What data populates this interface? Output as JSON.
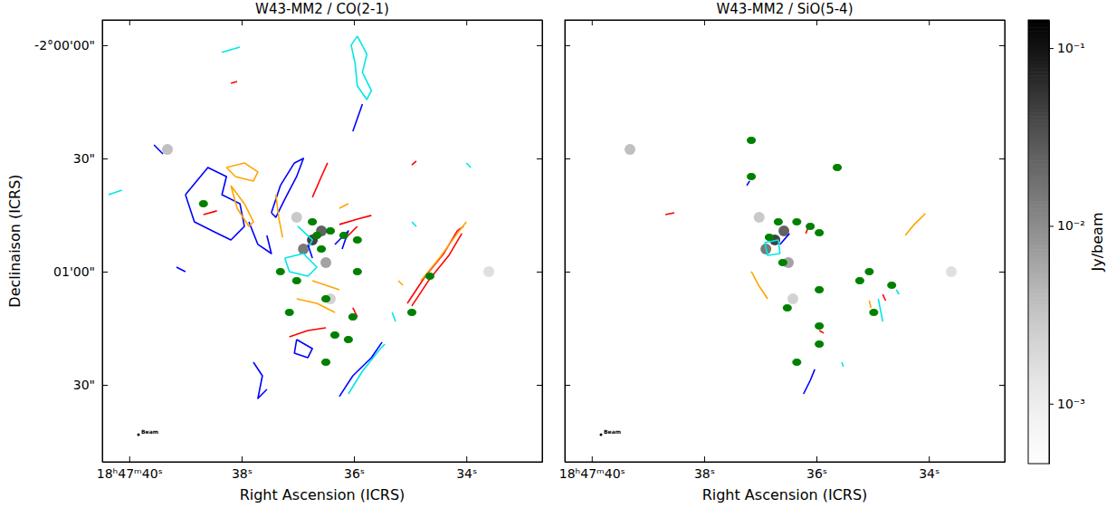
{
  "chart_data": {
    "type": "image_panels",
    "panels": [
      {
        "type": "contour_map",
        "title": "W43-MM2 / CO(2-1)",
        "x_label": "Right Ascension (ICRS)",
        "y_label": "Declinaison (ICRS)",
        "beam_label": "Beam",
        "tick_labels": true,
        "xlim": [
          40.48,
          32.65
        ],
        "ylim": [
          -7310.4,
          -7193.3
        ],
        "xticks": [
          {
            "value": 40,
            "label": "18ʰ47ᵐ40ˢ"
          },
          {
            "value": 38,
            "label": "38ˢ"
          },
          {
            "value": 36,
            "label": "36ˢ"
          },
          {
            "value": 34,
            "label": "34ˢ"
          }
        ],
        "yticks": [
          {
            "value": -7200,
            "label": "-2°00'00\""
          },
          {
            "value": -7230,
            "label": "30\""
          },
          {
            "value": -7260,
            "label": "01'00\""
          },
          {
            "value": -7290,
            "label": "30\""
          }
        ],
        "series": [
          {
            "type": "line",
            "color": "#00e6e6",
            "x": [
              35.94,
              35.77,
              35.85,
              35.69,
              35.77,
              35.94,
              35.98,
              36.05,
              35.94,
              null,
              37.23,
              36.9,
              36.66,
              36.82,
              37.15,
              37.23,
              null,
              37.0,
              36.74,
              36.82,
              null,
              36.1,
              35.85,
              35.53,
              35.45,
              null,
              35.32,
              35.26,
              null,
              40.37,
              40.13,
              null,
              38.35,
              38.03,
              null,
              34.0,
              33.92,
              null,
              34.97,
              34.89
            ],
            "y": [
              -7197.6,
              -7202.4,
              -7207.2,
              -7212,
              -7214.4,
              -7210.8,
              -7204.8,
              -7200,
              -7197.6,
              null,
              -7256.4,
              -7255.2,
              -7258.8,
              -7261.2,
              -7260,
              -7256.4,
              null,
              -7248,
              -7251.6,
              -7254,
              null,
              -7292.4,
              -7286.4,
              -7280.4,
              -7279.2,
              null,
              -7270.8,
              -7273.2,
              null,
              -7239.6,
              -7238.4,
              null,
              -7201.9,
              -7200.5,
              null,
              -7231.2,
              -7232.4,
              null,
              -7246.8,
              -7248
            ]
          },
          {
            "type": "line",
            "color": "#0000ff",
            "x": [
              37.47,
              37.31,
              37.06,
              36.9,
              37.02,
              37.23,
              37.39,
              37.47,
              null,
              39.0,
              38.6,
              38.27,
              38.35,
              38.03,
              37.95,
              38.19,
              38.52,
              38.84,
              38.92,
              39.0,
              null,
              37.87,
              37.71,
              37.47,
              37.55,
              null,
              36.26,
              36.02,
              35.69,
              35.5,
              null,
              37.79,
              37.63,
              37.71,
              37.55,
              null,
              36.02,
              35.85,
              null,
              39.16,
              39.0,
              null,
              39.56,
              39.4,
              null,
              36.34,
              36.1,
              36.21,
              null,
              36.82,
              36.74,
              null,
              37.02,
              36.74,
              36.82,
              37.06,
              37.02
            ],
            "y": [
              -7244.4,
              -7237.2,
              -7231.2,
              -7230,
              -7234.8,
              -7240.8,
              -7245.6,
              -7244.4,
              null,
              -7239.6,
              -7232.4,
              -7234.8,
              -7239.6,
              -7242,
              -7248,
              -7251.6,
              -7249.2,
              -7246.8,
              -7243.2,
              -7239.6,
              null,
              -7246.8,
              -7252.8,
              -7255.2,
              -7250.4,
              null,
              -7293.1,
              -7287.6,
              -7282.8,
              -7278.7,
              null,
              -7284,
              -7287.6,
              -7293.6,
              -7291.2,
              null,
              -7222.8,
              -7215.6,
              null,
              -7258.8,
              -7260,
              null,
              -7226.4,
              -7228.8,
              null,
              -7252.8,
              -7249.2,
              -7254,
              null,
              -7252.8,
              -7256.4,
              null,
              -7278,
              -7280.4,
              -7282.8,
              -7281.6,
              -7278
            ]
          },
          {
            "type": "line",
            "color": "#ff0000",
            "x": [
              35.05,
              34.73,
              34.4,
              34.16,
              34.05,
              null,
              36.74,
              36.58,
              36.47,
              null,
              38.68,
              38.44,
              null,
              36.26,
              35.94,
              35.69,
              null,
              37.15,
              36.82,
              36.5,
              null,
              34.97,
              34.89,
              null,
              38.19,
              38.08,
              null,
              36.1,
              35.94,
              null,
              36.02,
              35.94,
              null,
              34.97,
              34.65,
              34.31,
              34.08
            ],
            "y": [
              -7268.4,
              -7261.2,
              -7255.2,
              -7249.2,
              -7248,
              null,
              -7240.3,
              -7234.8,
              -7231.2,
              null,
              -7244.9,
              -7243.9,
              null,
              -7247.5,
              -7246.1,
              -7245.1,
              null,
              -7277.3,
              -7275.6,
              -7274.9,
              null,
              -7231.7,
              -7230.7,
              null,
              -7210.1,
              -7209.6,
              null,
              -7250.4,
              -7248,
              null,
              -7269.6,
              -7272,
              null,
              -7269.1,
              -7261.9,
              -7255.7,
              -7249.9
            ]
          },
          {
            "type": "line",
            "color": "#ffa500",
            "x": [
              38.27,
              37.95,
              37.71,
              37.79,
              38.11,
              38.27,
              null,
              38.19,
              37.95,
              37.79,
              37.87,
              38.08,
              38.19,
              null,
              34.81,
              34.48,
              34.16,
              34.0,
              null,
              37.39,
              37.34,
              37.27,
              null,
              37.02,
              36.66,
              36.34,
              null,
              36.74,
              36.26,
              null,
              35.21,
              35.13,
              null,
              36.26,
              36.1
            ],
            "y": [
              -7232.4,
              -7231.2,
              -7233.6,
              -7236,
              -7234.8,
              -7232.4,
              null,
              -7237.2,
              -7242,
              -7246.8,
              -7248,
              -7243.2,
              -7237.2,
              null,
              -7262.4,
              -7256.4,
              -7249.9,
              -7246.8,
              null,
              -7239.6,
              -7245.6,
              -7250.9,
              null,
              -7267.2,
              -7268.4,
              -7270.8,
              null,
              -7262.4,
              -7264.8,
              null,
              -7262.4,
              -7263.6,
              null,
              -7243.2,
              -7242
            ]
          },
          {
            "type": "scatter",
            "marker": "ellipse",
            "color": "#008000",
            "x": [
              36.74,
              36.66,
              36.58,
              37.31,
              37.02,
              36.42,
              36.18,
              35.94,
              36.02,
              36.34,
              36.1,
              36.5,
              34.97,
              34.65,
              38.68,
              37.15,
              36.5,
              35.94
            ],
            "y": [
              -7246.8,
              -7250.4,
              -7254,
              -7260,
              -7262.4,
              -7249.2,
              -7250.4,
              -7251.6,
              -7272,
              -7276.8,
              -7278,
              -7284,
              -7270.8,
              -7261.2,
              -7242,
              -7270.8,
              -7267.2,
              -7260
            ]
          }
        ]
      },
      {
        "type": "contour_map",
        "title": "W43-MM2 / SiO(5-4)",
        "x_label": "Right Ascension (ICRS)",
        "beam_label": "Beam",
        "tick_labels": "x",
        "xlim": [
          40.48,
          32.65
        ],
        "ylim": [
          -7310.4,
          -7193.3
        ],
        "xticks": [
          {
            "value": 40,
            "label": "18ʰ47ᵐ40ˢ"
          },
          {
            "value": 38,
            "label": "38ˢ"
          },
          {
            "value": 36,
            "label": "36ˢ"
          },
          {
            "value": 34,
            "label": "34ˢ"
          }
        ],
        "yticks": [
          -7200,
          -7230,
          -7260,
          -7290
        ],
        "series": [
          {
            "type": "line",
            "color": "#00e6e6",
            "x": [
              36.92,
              36.68,
              36.65,
              36.87,
              36.92,
              null,
              34.9,
              34.82,
              null,
              35.55,
              35.52,
              null,
              34.58,
              34.53
            ],
            "y": [
              -7252.3,
              -7251.6,
              -7255.2,
              -7255.7,
              -7252.3,
              null,
              -7267.2,
              -7273.2,
              null,
              -7284,
              -7285.2,
              null,
              -7264.8,
              -7266
            ]
          },
          {
            "type": "line",
            "color": "#0000ff",
            "x": [
              37.24,
              37.19,
              null,
              36.65,
              36.48,
              null,
              36.23,
              36.11,
              36.03
            ],
            "y": [
              -7237.2,
              -7236,
              null,
              -7252.8,
              -7249.9,
              null,
              -7292.4,
              -7288.8,
              -7285.9
            ]
          },
          {
            "type": "line",
            "color": "#ff0000",
            "x": [
              36.19,
              36.14,
              null,
              38.69,
              38.53,
              null,
              34.82,
              34.77,
              null,
              35.95,
              35.87
            ],
            "y": [
              -7249.9,
              -7248,
              null,
              -7244.9,
              -7244.4,
              null,
              -7266,
              -7267.7,
              null,
              -7275.6,
              -7276.3
            ]
          },
          {
            "type": "line",
            "color": "#ffa500",
            "x": [
              37.16,
              37.03,
              36.87,
              null,
              34.42,
              34.26,
              34.06,
              null,
              35.06,
              35.03
            ],
            "y": [
              -7260,
              -7263.6,
              -7267.2,
              null,
              -7250.4,
              -7247.5,
              -7244.6,
              null,
              -7267.7,
              -7269.6
            ]
          },
          {
            "type": "scatter",
            "marker": "ellipse",
            "color": "#008000",
            "x": [
              37.16,
              37.16,
              35.63,
              36.68,
              36.35,
              36.11,
              35.95,
              36.6,
              36.52,
              35.95,
              35.95,
              36.35,
              35.06,
              35.23,
              34.66,
              34.98,
              35.95,
              36.84
            ],
            "y": [
              -7225.2,
              -7234.8,
              -7232.4,
              -7246.8,
              -7246.8,
              -7248,
              -7249.7,
              -7257.6,
              -7269.6,
              -7274.4,
              -7279.2,
              -7284,
              -7260,
              -7262.4,
              -7263.6,
              -7270.8,
              -7264.8,
              -7250.9
            ]
          }
        ]
      }
    ],
    "continuum": {
      "x": [
        36.74,
        36.58,
        36.9,
        39.32,
        36.5,
        36.42,
        33.6,
        37.02
      ],
      "y": [
        -7251.6,
        -7249.2,
        -7254,
        -7227.6,
        -7257.6,
        -7267.2,
        -7260,
        -7245.6
      ],
      "values": [
        0.1,
        0.05,
        0.03,
        0.005,
        0.01,
        0.003,
        0.002,
        0.004
      ]
    },
    "colorbar": {
      "label": "Jy/beam",
      "log": true,
      "range": [
        0.00046,
        0.144
      ],
      "ticks": [
        {
          "value": 0.1,
          "label": "10⁻¹"
        },
        {
          "value": 0.01,
          "label": "10⁻²"
        },
        {
          "value": 0.001,
          "label": "10⁻³"
        }
      ]
    }
  }
}
